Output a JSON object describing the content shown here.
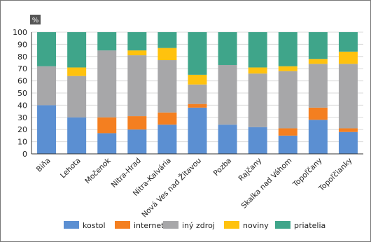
{
  "chart_data": {
    "type": "bar",
    "stacked": true,
    "unit_label": "%",
    "title": "",
    "xlabel": "",
    "ylabel": "",
    "ylim": [
      0,
      100
    ],
    "yticks": [
      0,
      10,
      20,
      30,
      40,
      50,
      60,
      70,
      80,
      90,
      100
    ],
    "grid": true,
    "legend": "bottom",
    "categories": [
      "Biňa",
      "Lehota",
      "Močenok",
      "Nitra-Hrad",
      "Nitra-Kalvária",
      "Nová Ves nad Žitavou",
      "Pozba",
      "Rajčany",
      "Skalka nad Váhom",
      "Topoľčany",
      "Topoľčianky"
    ],
    "series": [
      {
        "name": "kostol",
        "color": "#5b8fd2",
        "values": [
          40,
          30,
          17,
          20,
          24,
          38,
          24,
          22,
          15,
          28,
          18
        ]
      },
      {
        "name": "internet",
        "color": "#f47f20",
        "values": [
          0,
          0,
          13,
          11,
          10,
          3,
          0,
          0,
          6,
          10,
          3
        ]
      },
      {
        "name": "iný zdroj",
        "color": "#a7a7a9",
        "values": [
          32,
          34,
          55,
          50,
          43,
          16,
          49,
          44,
          47,
          36,
          53
        ]
      },
      {
        "name": "noviny",
        "color": "#ffc20e",
        "values": [
          0,
          7,
          0,
          4,
          10,
          8,
          0,
          5,
          4,
          4,
          10
        ]
      },
      {
        "name": "priatelia",
        "color": "#3fa58a",
        "values": [
          28,
          29,
          15,
          15,
          13,
          35,
          27,
          29,
          28,
          22,
          16
        ]
      }
    ]
  }
}
